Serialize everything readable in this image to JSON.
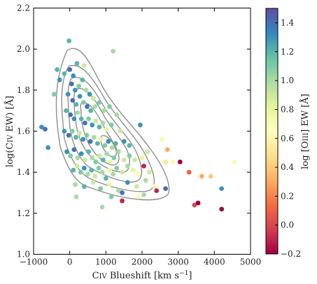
{
  "chart_data": {
    "type": "scatter",
    "title": "",
    "xlabel": "C IV Blueshift [km s$^{-1}$]",
    "ylabel": "log(C IV EW) [Å]",
    "xlabel_parts": {
      "pre": "C",
      "sc": "IV",
      "post": " Blueshift [km s",
      "sup": "−1",
      "end": "]"
    },
    "ylabel_parts": {
      "pre": "log(C",
      "sc": "IV",
      "post": " EW) [Å]"
    },
    "xlim": [
      -1000,
      5000
    ],
    "ylim": [
      1.0,
      2.2
    ],
    "xticks": [
      -1000,
      0,
      1000,
      2000,
      3000,
      4000,
      5000
    ],
    "xtick_labels": [
      "−1000",
      "0",
      "1000",
      "2000",
      "3000",
      "4000",
      "5000"
    ],
    "yticks": [
      1.0,
      1.2,
      1.4,
      1.6,
      1.8,
      2.0,
      2.2
    ],
    "ytick_labels": [
      "1.0",
      "1.2",
      "1.4",
      "1.6",
      "1.8",
      "2.0",
      "2.2"
    ],
    "grid": false,
    "colorbar": {
      "label": "log [O III] EW [Å]",
      "label_parts": {
        "pre": "log [O",
        "sc": "III",
        "post": "] EW [Å]"
      },
      "range": [
        -0.2,
        1.5
      ],
      "ticks": [
        -0.2,
        0.0,
        0.2,
        0.4,
        0.6,
        0.8,
        1.0,
        1.2,
        1.4
      ],
      "tick_labels": [
        "−0.2",
        "0.0",
        "0.2",
        "0.4",
        "0.6",
        "0.8",
        "1.0",
        "1.2",
        "1.4"
      ],
      "colormap": "Spectral"
    },
    "colormap_stops": [
      "#9e0142",
      "#d53e4f",
      "#f46d43",
      "#fdae61",
      "#fee08b",
      "#ffffbf",
      "#e6f598",
      "#abdda4",
      "#66c2a5",
      "#3288bd",
      "#5e4fa2"
    ],
    "contour_levels": 6,
    "points": [
      {
        "x": -20,
        "y": 2.04,
        "c": 1.2
      },
      {
        "x": 1200,
        "y": 1.99,
        "c": 1.0
      },
      {
        "x": -350,
        "y": 1.9,
        "c": 1.2
      },
      {
        "x": -430,
        "y": 1.78,
        "c": 1.1
      },
      {
        "x": -280,
        "y": 1.85,
        "c": 1.3
      },
      {
        "x": -150,
        "y": 1.88,
        "c": 1.2
      },
      {
        "x": 0,
        "y": 1.9,
        "c": 1.4
      },
      {
        "x": 100,
        "y": 1.87,
        "c": 1.3
      },
      {
        "x": 200,
        "y": 1.93,
        "c": 1.2
      },
      {
        "x": 400,
        "y": 1.92,
        "c": 0.9
      },
      {
        "x": 50,
        "y": 1.83,
        "c": 1.4
      },
      {
        "x": 150,
        "y": 1.8,
        "c": 1.3
      },
      {
        "x": 250,
        "y": 1.82,
        "c": 1.1
      },
      {
        "x": 350,
        "y": 1.85,
        "c": 1.2
      },
      {
        "x": 450,
        "y": 1.8,
        "c": 1.0
      },
      {
        "x": 550,
        "y": 1.78,
        "c": 1.3
      },
      {
        "x": 650,
        "y": 1.76,
        "c": 0.9
      },
      {
        "x": -50,
        "y": 1.78,
        "c": 1.3
      },
      {
        "x": 80,
        "y": 1.75,
        "c": 1.4
      },
      {
        "x": 180,
        "y": 1.73,
        "c": 1.2
      },
      {
        "x": 280,
        "y": 1.77,
        "c": 1.3
      },
      {
        "x": 380,
        "y": 1.74,
        "c": 1.1
      },
      {
        "x": 480,
        "y": 1.72,
        "c": 1.4
      },
      {
        "x": 580,
        "y": 1.7,
        "c": 1.2
      },
      {
        "x": 700,
        "y": 1.72,
        "c": 1.0
      },
      {
        "x": 820,
        "y": 1.74,
        "c": 1.1
      },
      {
        "x": 950,
        "y": 1.7,
        "c": 1.0
      },
      {
        "x": 1100,
        "y": 1.72,
        "c": 1.1
      },
      {
        "x": 1300,
        "y": 1.68,
        "c": 1.0
      },
      {
        "x": -100,
        "y": 1.7,
        "c": 1.2
      },
      {
        "x": 20,
        "y": 1.68,
        "c": 1.4
      },
      {
        "x": 120,
        "y": 1.66,
        "c": 1.3
      },
      {
        "x": 220,
        "y": 1.69,
        "c": 1.0
      },
      {
        "x": 320,
        "y": 1.66,
        "c": 1.2
      },
      {
        "x": 420,
        "y": 1.64,
        "c": 1.4
      },
      {
        "x": 520,
        "y": 1.66,
        "c": 1.1
      },
      {
        "x": 620,
        "y": 1.63,
        "c": 1.3
      },
      {
        "x": 720,
        "y": 1.65,
        "c": 0.9
      },
      {
        "x": 820,
        "y": 1.62,
        "c": 1.2
      },
      {
        "x": 920,
        "y": 1.64,
        "c": 1.0
      },
      {
        "x": 1020,
        "y": 1.61,
        "c": 0.8
      },
      {
        "x": 1150,
        "y": 1.63,
        "c": 1.1
      },
      {
        "x": 1400,
        "y": 1.6,
        "c": 0.9
      },
      {
        "x": 1950,
        "y": 1.63,
        "c": 1.3
      },
      {
        "x": -780,
        "y": 1.62,
        "c": 1.3
      },
      {
        "x": -680,
        "y": 1.61,
        "c": 1.4
      },
      {
        "x": -600,
        "y": 1.52,
        "c": 1.3
      },
      {
        "x": -150,
        "y": 1.6,
        "c": 1.3
      },
      {
        "x": -30,
        "y": 1.58,
        "c": 1.4
      },
      {
        "x": 70,
        "y": 1.6,
        "c": 1.1
      },
      {
        "x": 170,
        "y": 1.57,
        "c": 1.2
      },
      {
        "x": 270,
        "y": 1.59,
        "c": 0.9
      },
      {
        "x": 370,
        "y": 1.56,
        "c": 1.3
      },
      {
        "x": 470,
        "y": 1.58,
        "c": 1.1
      },
      {
        "x": 570,
        "y": 1.55,
        "c": 1.4
      },
      {
        "x": 670,
        "y": 1.57,
        "c": 1.0
      },
      {
        "x": 770,
        "y": 1.54,
        "c": 1.2
      },
      {
        "x": 870,
        "y": 1.56,
        "c": 0.8
      },
      {
        "x": 970,
        "y": 1.53,
        "c": 1.1
      },
      {
        "x": 1070,
        "y": 1.55,
        "c": 1.3
      },
      {
        "x": 1170,
        "y": 1.52,
        "c": 1.0
      },
      {
        "x": 1270,
        "y": 1.54,
        "c": 1.2
      },
      {
        "x": 1500,
        "y": 1.55,
        "c": 1.3
      },
      {
        "x": 1650,
        "y": 1.53,
        "c": 1.2
      },
      {
        "x": 2550,
        "y": 1.56,
        "c": 0.6
      },
      {
        "x": -80,
        "y": 1.5,
        "c": 1.3
      },
      {
        "x": 20,
        "y": 1.48,
        "c": 1.1
      },
      {
        "x": 120,
        "y": 1.51,
        "c": 1.4
      },
      {
        "x": 220,
        "y": 1.47,
        "c": 1.0
      },
      {
        "x": 320,
        "y": 1.49,
        "c": 1.3
      },
      {
        "x": 420,
        "y": 1.46,
        "c": 0.9
      },
      {
        "x": 520,
        "y": 1.5,
        "c": 1.2
      },
      {
        "x": 620,
        "y": 1.47,
        "c": 1.0
      },
      {
        "x": 720,
        "y": 1.45,
        "c": 1.1
      },
      {
        "x": 820,
        "y": 1.48,
        "c": 0.9
      },
      {
        "x": 920,
        "y": 1.46,
        "c": 1.2
      },
      {
        "x": 1020,
        "y": 1.49,
        "c": 1.0
      },
      {
        "x": 1120,
        "y": 1.45,
        "c": 0.8
      },
      {
        "x": 1220,
        "y": 1.47,
        "c": 1.1
      },
      {
        "x": 1350,
        "y": 1.5,
        "c": 1.0
      },
      {
        "x": 1500,
        "y": 1.46,
        "c": 0.9
      },
      {
        "x": 1650,
        "y": 1.48,
        "c": 1.1
      },
      {
        "x": 1800,
        "y": 1.46,
        "c": 0.9
      },
      {
        "x": 2000,
        "y": 1.47,
        "c": 0.8
      },
      {
        "x": 2150,
        "y": 1.5,
        "c": 0.9
      },
      {
        "x": 2700,
        "y": 1.51,
        "c": 0.3
      },
      {
        "x": 100,
        "y": 1.41,
        "c": 1.2
      },
      {
        "x": 200,
        "y": 1.43,
        "c": 0.9
      },
      {
        "x": 300,
        "y": 1.4,
        "c": 1.1
      },
      {
        "x": 400,
        "y": 1.42,
        "c": 1.3
      },
      {
        "x": 500,
        "y": 1.39,
        "c": 1.0
      },
      {
        "x": 600,
        "y": 1.41,
        "c": 1.2
      },
      {
        "x": 700,
        "y": 1.38,
        "c": 0.9
      },
      {
        "x": 800,
        "y": 1.42,
        "c": 1.1
      },
      {
        "x": 900,
        "y": 1.4,
        "c": 1.0
      },
      {
        "x": 1000,
        "y": 1.37,
        "c": 1.2
      },
      {
        "x": 1100,
        "y": 1.41,
        "c": 0.8
      },
      {
        "x": 1200,
        "y": 1.39,
        "c": 1.0
      },
      {
        "x": 1300,
        "y": 1.42,
        "c": 1.1
      },
      {
        "x": 1450,
        "y": 1.4,
        "c": 0.9
      },
      {
        "x": 1600,
        "y": 1.43,
        "c": 1.0
      },
      {
        "x": 1750,
        "y": 1.41,
        "c": 0.8
      },
      {
        "x": 1900,
        "y": 1.39,
        "c": 0.7
      },
      {
        "x": 2050,
        "y": 1.43,
        "c": -0.1
      },
      {
        "x": 2200,
        "y": 1.4,
        "c": 0.9
      },
      {
        "x": 2650,
        "y": 1.45,
        "c": 0.5
      },
      {
        "x": 2850,
        "y": 1.45,
        "c": 0.7
      },
      {
        "x": 3050,
        "y": 1.45,
        "c": -0.2
      },
      {
        "x": 3300,
        "y": 1.4,
        "c": 0.1
      },
      {
        "x": 3650,
        "y": 1.38,
        "c": 0.3
      },
      {
        "x": 3900,
        "y": 1.38,
        "c": 0.4
      },
      {
        "x": 4550,
        "y": 1.45,
        "c": 0.6
      },
      {
        "x": 150,
        "y": 1.34,
        "c": 1.0
      },
      {
        "x": 400,
        "y": 1.33,
        "c": 1.2
      },
      {
        "x": 650,
        "y": 1.35,
        "c": 0.9
      },
      {
        "x": 850,
        "y": 1.32,
        "c": 1.1
      },
      {
        "x": 1100,
        "y": 1.34,
        "c": 0.8
      },
      {
        "x": 1350,
        "y": 1.31,
        "c": 1.0
      },
      {
        "x": 1600,
        "y": 1.35,
        "c": 1.3
      },
      {
        "x": 1850,
        "y": 1.33,
        "c": 0.9
      },
      {
        "x": 2100,
        "y": 1.36,
        "c": 1.0
      },
      {
        "x": 2350,
        "y": 1.33,
        "c": 0.6
      },
      {
        "x": 2650,
        "y": 1.32,
        "c": 1.4
      },
      {
        "x": 4200,
        "y": 1.32,
        "c": 1.3
      },
      {
        "x": 180,
        "y": 1.28,
        "c": 1.0
      },
      {
        "x": 1150,
        "y": 1.28,
        "c": 1.1
      },
      {
        "x": 1450,
        "y": 1.3,
        "c": 1.4
      },
      {
        "x": 1900,
        "y": 1.28,
        "c": 0.7
      },
      {
        "x": 2050,
        "y": 1.29,
        "c": 1.0
      },
      {
        "x": 2400,
        "y": 1.31,
        "c": -0.1
      },
      {
        "x": 1450,
        "y": 1.26,
        "c": -0.1
      },
      {
        "x": 900,
        "y": 1.23,
        "c": 1.0
      },
      {
        "x": 3450,
        "y": 1.24,
        "c": 0.0
      },
      {
        "x": 3550,
        "y": 1.25,
        "c": -0.2
      },
      {
        "x": 4200,
        "y": 1.22,
        "c": -0.2
      }
    ]
  }
}
